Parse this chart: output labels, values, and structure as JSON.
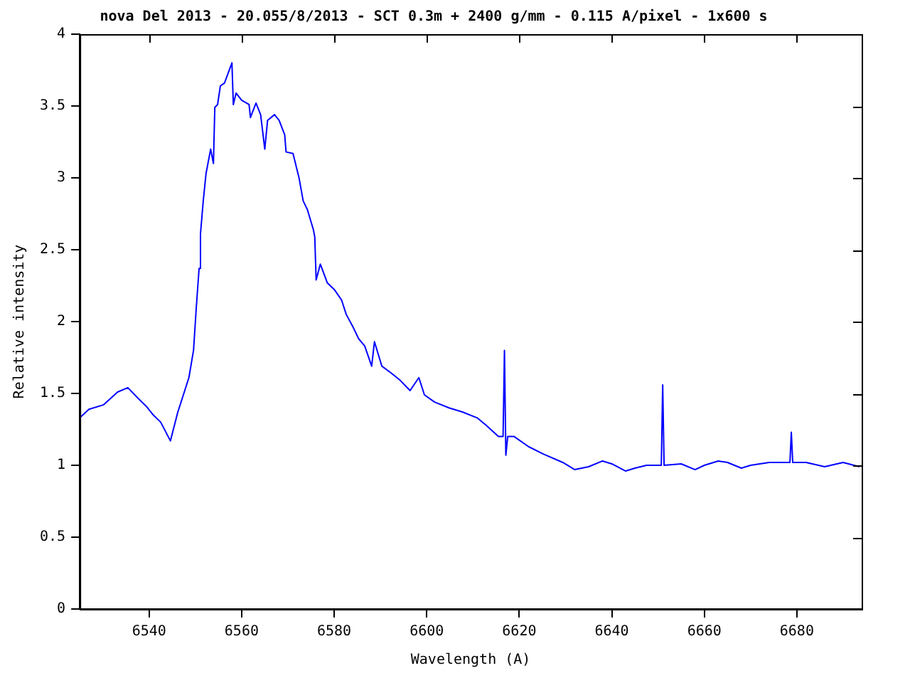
{
  "chart_data": {
    "type": "line",
    "title": "nova Del 2013 - 20.055/8/2013 - SCT 0.3m + 2400 g/mm - 0.115 A/pixel - 1x600 s",
    "xlabel": "Wavelength (A)",
    "ylabel": "Relative intensity",
    "x": [
      6525.0,
      6527.0,
      6530.1,
      6533.2,
      6535.4,
      6536.9,
      6537.8,
      6539.4,
      6540.9,
      6542.5,
      6544.6,
      6546.2,
      6548.6,
      6549.6,
      6550.2,
      6550.8,
      6551.1,
      6551.7,
      6552.3,
      6553.3,
      6553.9,
      6554.2,
      6554.8,
      6555.4,
      6556.3,
      6557.9,
      6558.2,
      6558.8,
      6560.0,
      6561.6,
      6561.9,
      6563.1,
      6564.1,
      6565.0,
      6565.6,
      6567.1,
      6568.1,
      6569.3,
      6569.6,
      6571.1,
      6572.4,
      6573.3,
      6574.2,
      6575.5,
      6575.8,
      6576.1,
      6577.0,
      6578.5,
      6580.1,
      6581.6,
      6582.6,
      6584.1,
      6585.3,
      6586.6,
      6588.1,
      6588.7,
      6590.3,
      6592.4,
      6594.3,
      6596.4,
      6598.3,
      6599.5,
      6601.7,
      6604.8,
      6607.8,
      6610.9,
      6612.8,
      6615.5,
      6616.5,
      6616.8,
      6617.1,
      6617.5,
      6618.9,
      6622.0,
      6625.1,
      6629.4,
      6632.0,
      6635.0,
      6638.0,
      6640.0,
      6643.0,
      6645.0,
      6647.5,
      6650.7,
      6651.0,
      6651.3,
      6655.0,
      6658.0,
      6660.0,
      6663.0,
      6665.0,
      6668.0,
      6670.0,
      6674.0,
      6678.5,
      6678.8,
      6679.1,
      6682.0,
      6686.0,
      6690.0,
      6693.5
    ],
    "series": [
      {
        "color": "#0000ff",
        "values": [
          1.33,
          1.39,
          1.42,
          1.51,
          1.54,
          1.49,
          1.46,
          1.41,
          1.35,
          1.3,
          1.17,
          1.37,
          1.61,
          1.8,
          2.1,
          2.37,
          2.61,
          2.84,
          3.03,
          3.2,
          3.1,
          3.49,
          3.51,
          3.64,
          3.66,
          3.8,
          3.51,
          3.59,
          3.54,
          3.51,
          3.42,
          3.52,
          3.44,
          3.2,
          3.4,
          3.44,
          3.4,
          3.3,
          3.18,
          3.17,
          3.0,
          2.84,
          2.78,
          2.64,
          2.59,
          2.29,
          2.4,
          2.27,
          2.22,
          2.15,
          2.05,
          1.96,
          1.88,
          1.83,
          1.69,
          1.86,
          1.69,
          1.64,
          1.59,
          1.52,
          1.61,
          1.49,
          1.44,
          1.4,
          1.37,
          1.33,
          1.28,
          1.2,
          1.2,
          1.8,
          1.07,
          1.2,
          1.2,
          1.13,
          1.08,
          1.02,
          0.97,
          0.99,
          1.03,
          1.01,
          0.96,
          0.98,
          1.0,
          1.0,
          1.56,
          1.0,
          1.01,
          0.97,
          1.0,
          1.03,
          1.02,
          0.98,
          1.0,
          1.02,
          1.02,
          1.23,
          1.02,
          1.02,
          0.99,
          1.02,
          0.99
        ]
      }
    ],
    "xlim": [
      6525,
      6694
    ],
    "ylim": [
      0,
      4
    ],
    "xticks": [
      6540,
      6560,
      6580,
      6600,
      6620,
      6640,
      6660,
      6680
    ],
    "yticks": [
      0,
      0.5,
      1,
      1.5,
      2,
      2.5,
      3,
      3.5,
      4
    ],
    "marker": "none",
    "grid": false
  }
}
